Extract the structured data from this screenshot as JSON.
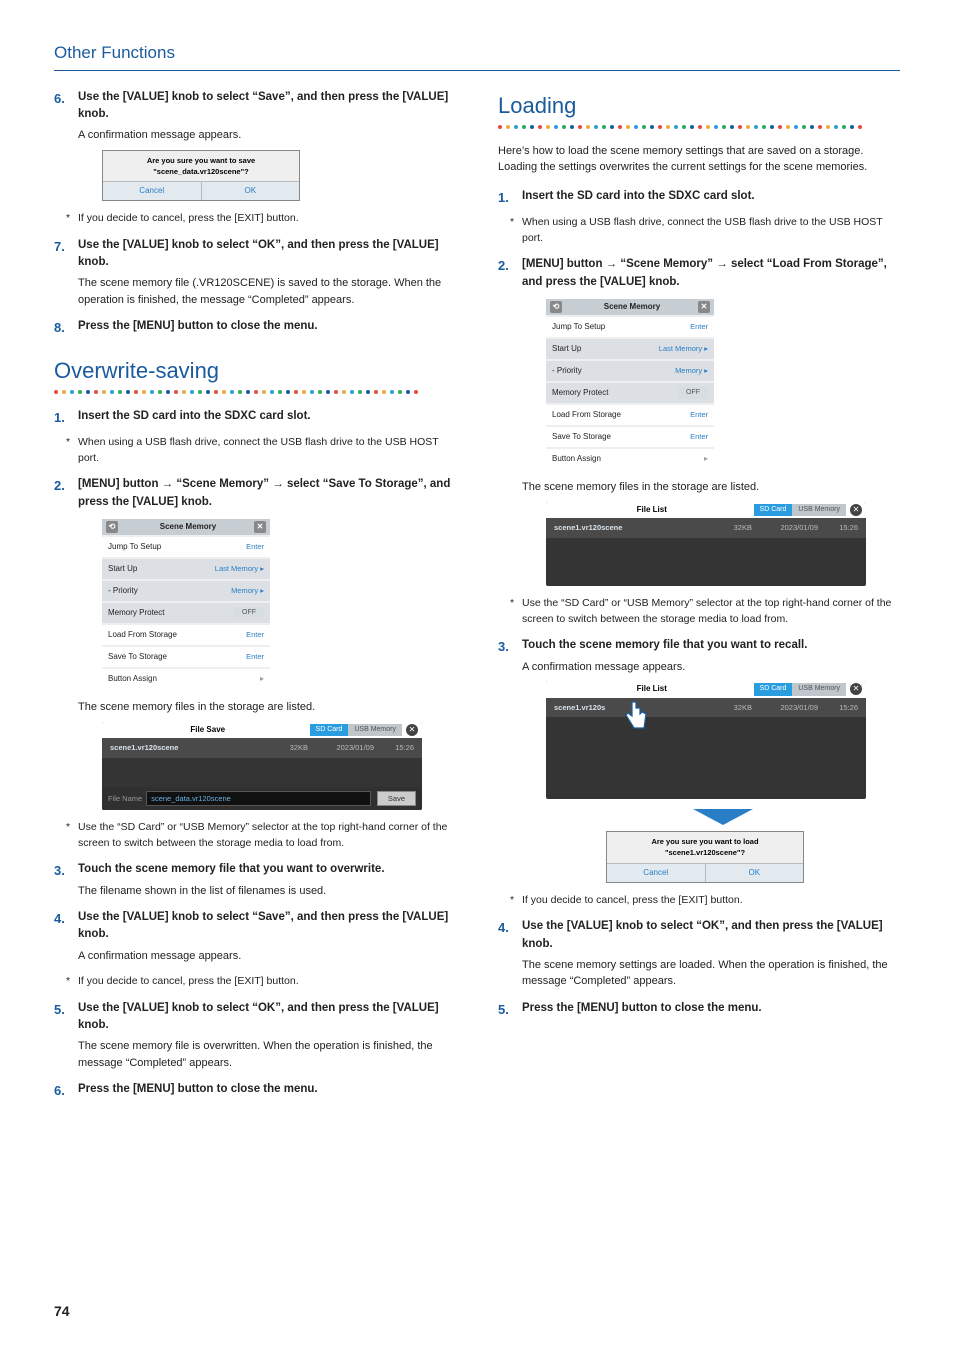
{
  "colors": {
    "brand": "#1a5b9e",
    "dots": [
      "#e84c3d",
      "#f2a93b",
      "#2a9de0",
      "#27ae60",
      "#1a5b9e"
    ]
  },
  "header": {
    "title": "Other Functions"
  },
  "page_number": "74",
  "confirm_save": {
    "msg": "Are you sure you want to save \"scene_data.vr120scene\"?",
    "cancel": "Cancel",
    "ok": "OK"
  },
  "confirm_load": {
    "msg": "Are you sure you want to load \"scene1.vr120scene\"?",
    "cancel": "Cancel",
    "ok": "OK"
  },
  "scene_panel": {
    "title": "Scene Memory",
    "rows": [
      {
        "l": "Jump To Setup",
        "r": "Enter",
        "cls": ""
      },
      {
        "l": "Start Up",
        "r": "Last Memory ▸",
        "cls": "dark"
      },
      {
        "l": "- Priority",
        "r": "Memory ▸",
        "cls": "dark"
      },
      {
        "l": "Memory Protect",
        "r": "OFF",
        "cls": "dark",
        "pill": true
      },
      {
        "l": "Load From Storage",
        "r": "Enter",
        "cls": ""
      },
      {
        "l": "Save To Storage",
        "r": "Enter",
        "cls": ""
      },
      {
        "l": "Button Assign",
        "r": "▸",
        "cls": "",
        "grey": true
      }
    ]
  },
  "file_list": {
    "header_label": "File Save",
    "header_label2": "File List",
    "tab1": "SD Card",
    "tab2": "USB Memory",
    "row": {
      "name": "scene1.vr120scene",
      "size": "32KB",
      "date": "2023/01/09",
      "time": "15:26"
    },
    "footer_label": "File Name",
    "footer_input": "scene_data.vr120scene",
    "save": "Save"
  },
  "saving_tail": {
    "steps": [
      {
        "n": "6.",
        "head": "Use the [VALUE] knob to select “Save”, and then press the [VALUE] knob.",
        "body": "A confirmation message appears."
      },
      {
        "n": "7.",
        "head": "Use the [VALUE] knob to select “OK”, and then press the [VALUE] knob.",
        "body": "The scene memory file (.VR120SCENE) is saved to the storage. When the operation is finished, the message “Completed” appears."
      },
      {
        "n": "8.",
        "head": "Press the [MENU] button to close the menu."
      }
    ],
    "note_cancel": "If you decide to cancel, press the [EXIT] button."
  },
  "overwrite": {
    "title": "Overwrite-saving",
    "steps": [
      {
        "n": "1.",
        "head": "Insert the SD card into the SDXC card slot."
      },
      {
        "n": "2.",
        "head_parts": [
          "[MENU] button ",
          " “Scene Memory” ",
          " select “Save To Storage”, and press the [VALUE] knob."
        ]
      },
      {
        "n": "3.",
        "head": "Touch the scene memory file that you want to overwrite.",
        "body": "The filename shown in the list of filenames is used."
      },
      {
        "n": "4.",
        "head": "Use the [VALUE] knob to select “Save”, and then press the [VALUE] knob.",
        "body": "A confirmation message appears."
      },
      {
        "n": "5.",
        "head": "Use the [VALUE] knob to select “OK”, and then press the [VALUE] knob.",
        "body": "The scene memory file is overwritten. When the operation is finished, the message “Completed” appears."
      },
      {
        "n": "6.",
        "head": "Press the [MENU] button to close the menu."
      }
    ],
    "note_usb": "When using a USB flash drive, connect the USB flash drive to the USB HOST port.",
    "note_listed": "The scene memory files in the storage are listed.",
    "note_selector": "Use the “SD Card” or “USB Memory” selector at the top right-hand corner of the screen to switch between the storage media to load from.",
    "note_cancel": "If you decide to cancel, press the [EXIT] button."
  },
  "loading": {
    "title": "Loading",
    "intro": "Here’s how to load the scene memory settings that are saved on a storage. Loading the settings overwrites the current settings for the scene memories.",
    "steps": [
      {
        "n": "1.",
        "head": "Insert the SD card into the SDXC card slot."
      },
      {
        "n": "2.",
        "head_parts": [
          "[MENU] button ",
          " “Scene Memory” ",
          " select “Load From Storage”, and press the [VALUE] knob."
        ]
      },
      {
        "n": "3.",
        "head": "Touch the scene memory file that you want to recall.",
        "body": "A confirmation message appears."
      },
      {
        "n": "4.",
        "head": "Use the [VALUE] knob to select “OK”, and then press the [VALUE] knob.",
        "body": "The scene memory settings are loaded. When the operation is finished, the message “Completed” appears."
      },
      {
        "n": "5.",
        "head": "Press the [MENU] button to close the menu."
      }
    ],
    "note_usb": "When using a USB flash drive, connect the USB flash drive to the USB HOST port.",
    "note_listed": "The scene memory files in the storage are listed.",
    "note_selector": "Use the “SD Card” or “USB Memory” selector at the top right-hand corner of the screen to switch between the storage media to load from.",
    "note_cancel": "If you decide to cancel, press the [EXIT] button."
  }
}
